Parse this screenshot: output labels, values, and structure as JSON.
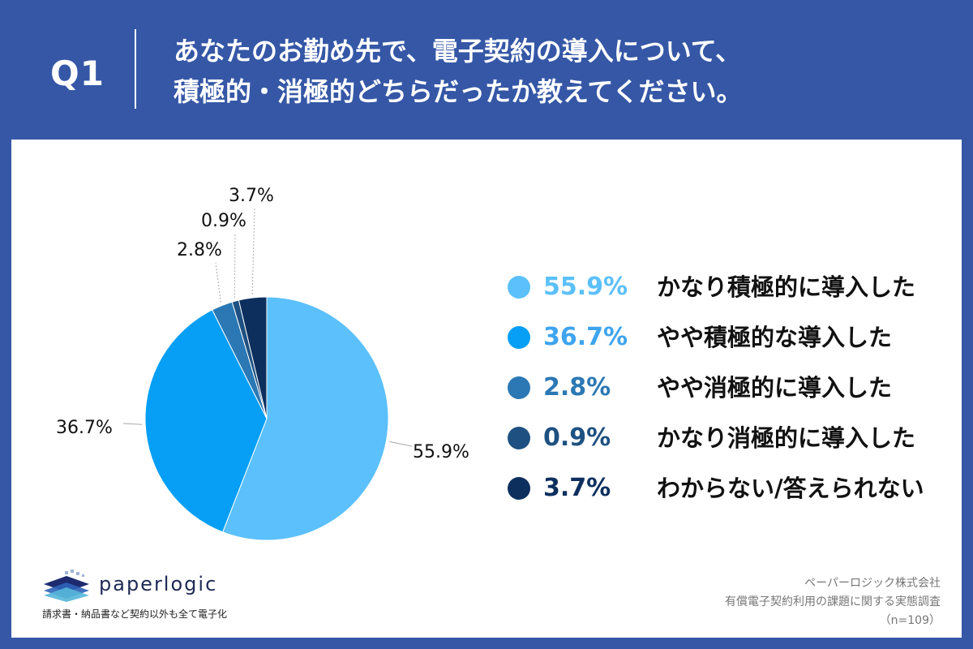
{
  "header": {
    "question_number": "Q1",
    "title_line1": "あなたのお勤め先で、電子契約の導入について、",
    "title_line2": "積極的・消極的どちらだったか教えてください。"
  },
  "chart_data": {
    "type": "pie",
    "title": "",
    "slices": [
      {
        "label": "かなり積極的に導入した",
        "value": 55.9,
        "display": "55.9%",
        "color": "#5bc0fb"
      },
      {
        "label": "やや積極的な導入した",
        "value": 36.7,
        "display": "36.7%",
        "color": "#069ff5"
      },
      {
        "label": "やや消極的に導入した",
        "value": 2.8,
        "display": "2.8%",
        "color": "#2b78b4"
      },
      {
        "label": "かなり消極的に導入した",
        "value": 0.9,
        "display": "0.9%",
        "color": "#1e5181"
      },
      {
        "label": "わからない/答えられない",
        "value": 3.7,
        "display": "3.7%",
        "color": "#0d2f5e"
      }
    ],
    "legend_position": "right"
  },
  "legend_text_colors": [
    "#5bc0fb",
    "#3ea4ef",
    "#2b78b4",
    "#1e5181",
    "#0d2f5e"
  ],
  "footer": {
    "logo_name": "paperlogic",
    "logo_tagline": "請求書・納品書など契約以外も全て電子化",
    "source_company": "ペーパーロジック株式会社",
    "source_survey": "有償電子契約利用の課題に関する実態調査",
    "sample_size": "（n=109）"
  }
}
